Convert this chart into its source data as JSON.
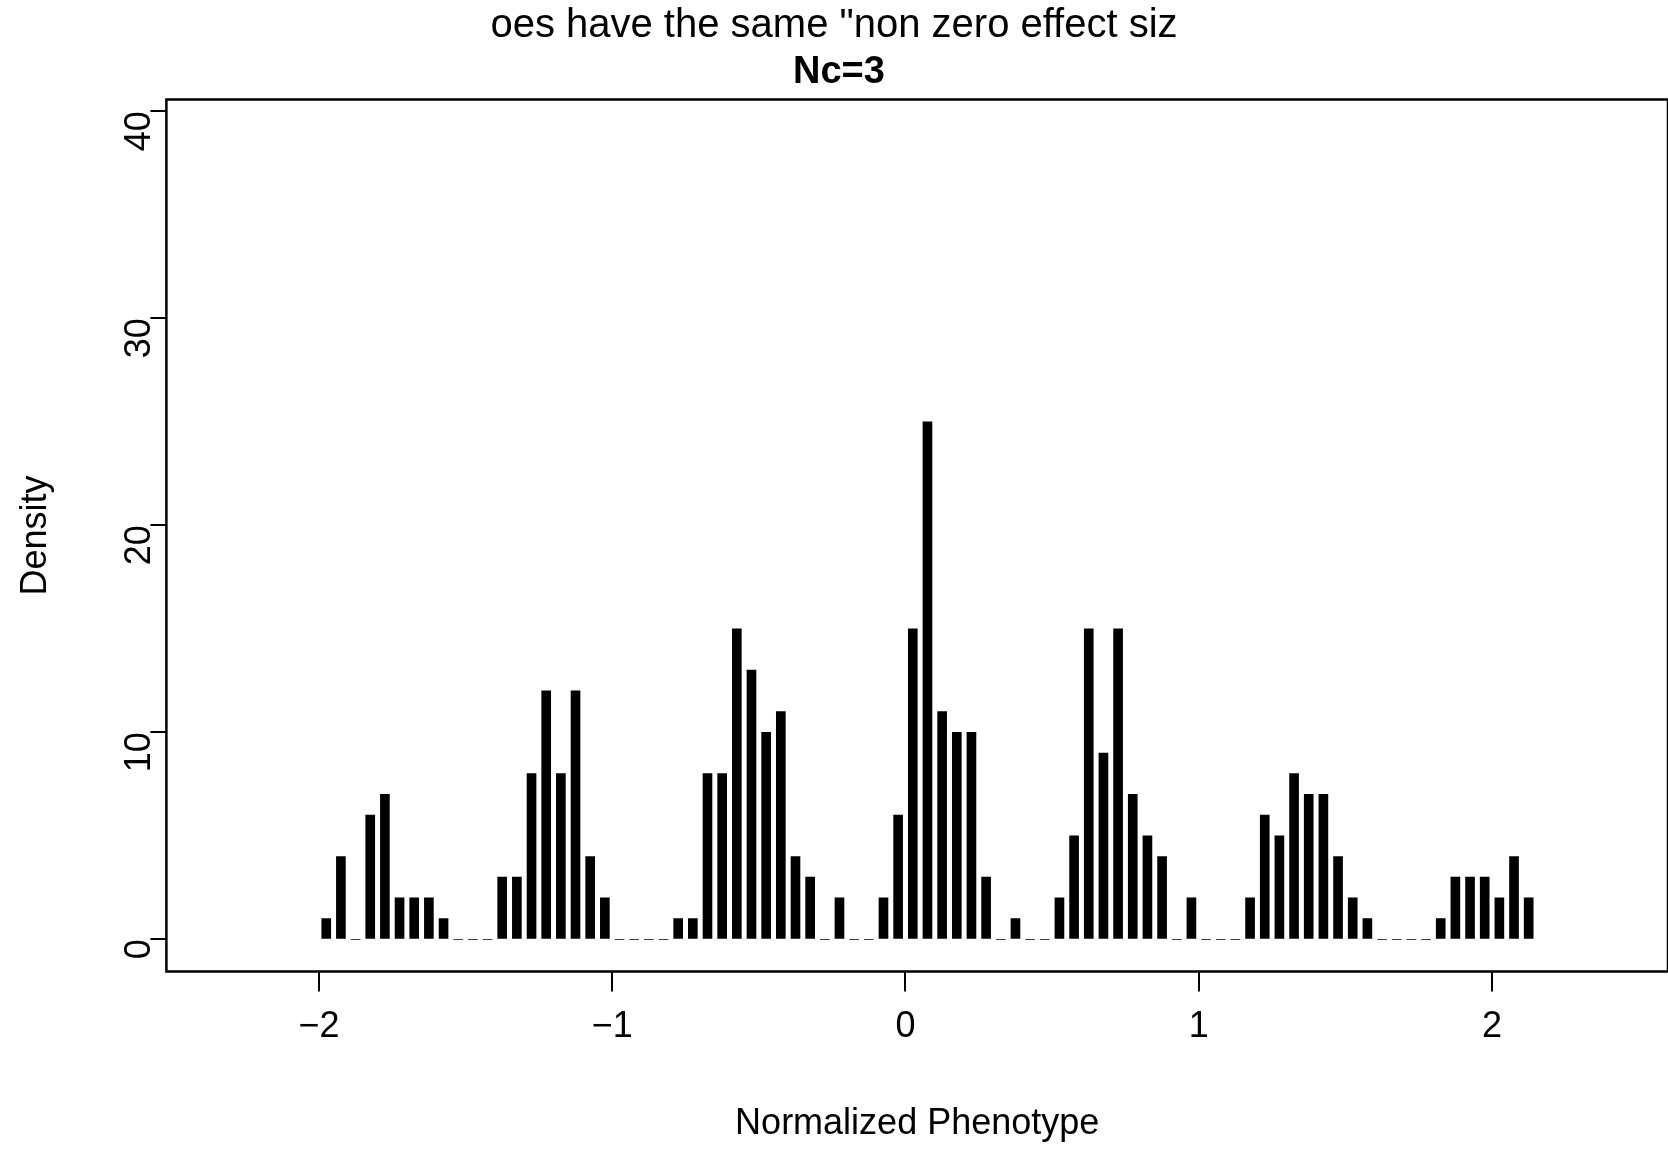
{
  "chart_data": {
    "type": "bar",
    "title": "Nc=3",
    "xlabel": "Normalized Phenotype",
    "ylabel": "Density",
    "annotations": [
      "oes have the same \"non zero effect siz"
    ],
    "x": [
      -1.975,
      -1.925,
      -1.875,
      -1.825,
      -1.775,
      -1.725,
      -1.675,
      -1.625,
      -1.575,
      -1.525,
      -1.475,
      -1.425,
      -1.375,
      -1.325,
      -1.275,
      -1.225,
      -1.175,
      -1.125,
      -1.075,
      -1.025,
      -0.975,
      -0.925,
      -0.875,
      -0.825,
      -0.775,
      -0.725,
      -0.675,
      -0.625,
      -0.575,
      -0.525,
      -0.475,
      -0.425,
      -0.375,
      -0.325,
      -0.275,
      -0.225,
      -0.175,
      -0.125,
      -0.075,
      -0.025,
      0.025,
      0.075,
      0.125,
      0.175,
      0.225,
      0.275,
      0.325,
      0.375,
      0.425,
      0.475,
      0.525,
      0.575,
      0.625,
      0.675,
      0.725,
      0.775,
      0.825,
      0.875,
      0.925,
      0.975,
      1.025,
      1.075,
      1.125,
      1.175,
      1.225,
      1.275,
      1.325,
      1.375,
      1.425,
      1.475,
      1.525,
      1.575,
      1.625,
      1.675,
      1.725,
      1.775,
      1.825,
      1.875,
      1.925,
      1.975,
      2.025,
      2.075,
      2.125
    ],
    "values": [
      1,
      4,
      0,
      6,
      7,
      2,
      2,
      2,
      1,
      0,
      0,
      0,
      3,
      3,
      8,
      12,
      8,
      12,
      4,
      2,
      0,
      0,
      0,
      0,
      1,
      1,
      8,
      8,
      15,
      13,
      10,
      11,
      4,
      3,
      0,
      2,
      0,
      0,
      2,
      6,
      15,
      25,
      11,
      10,
      10,
      3,
      0,
      1,
      0,
      0,
      2,
      5,
      15,
      9,
      15,
      7,
      5,
      4,
      0,
      2,
      0,
      0,
      0,
      2,
      6,
      5,
      8,
      7,
      7,
      4,
      2,
      1,
      0,
      0,
      0,
      0,
      1,
      3,
      3,
      3,
      2,
      4,
      2
    ],
    "color": "#000000",
    "xlim": [
      -2.52,
      2.6
    ],
    "xticks": [
      -2,
      -1,
      0,
      1,
      2
    ],
    "ylim": [
      -1.56,
      40.56
    ],
    "yticks": [
      0,
      10,
      20,
      30,
      40
    ]
  }
}
